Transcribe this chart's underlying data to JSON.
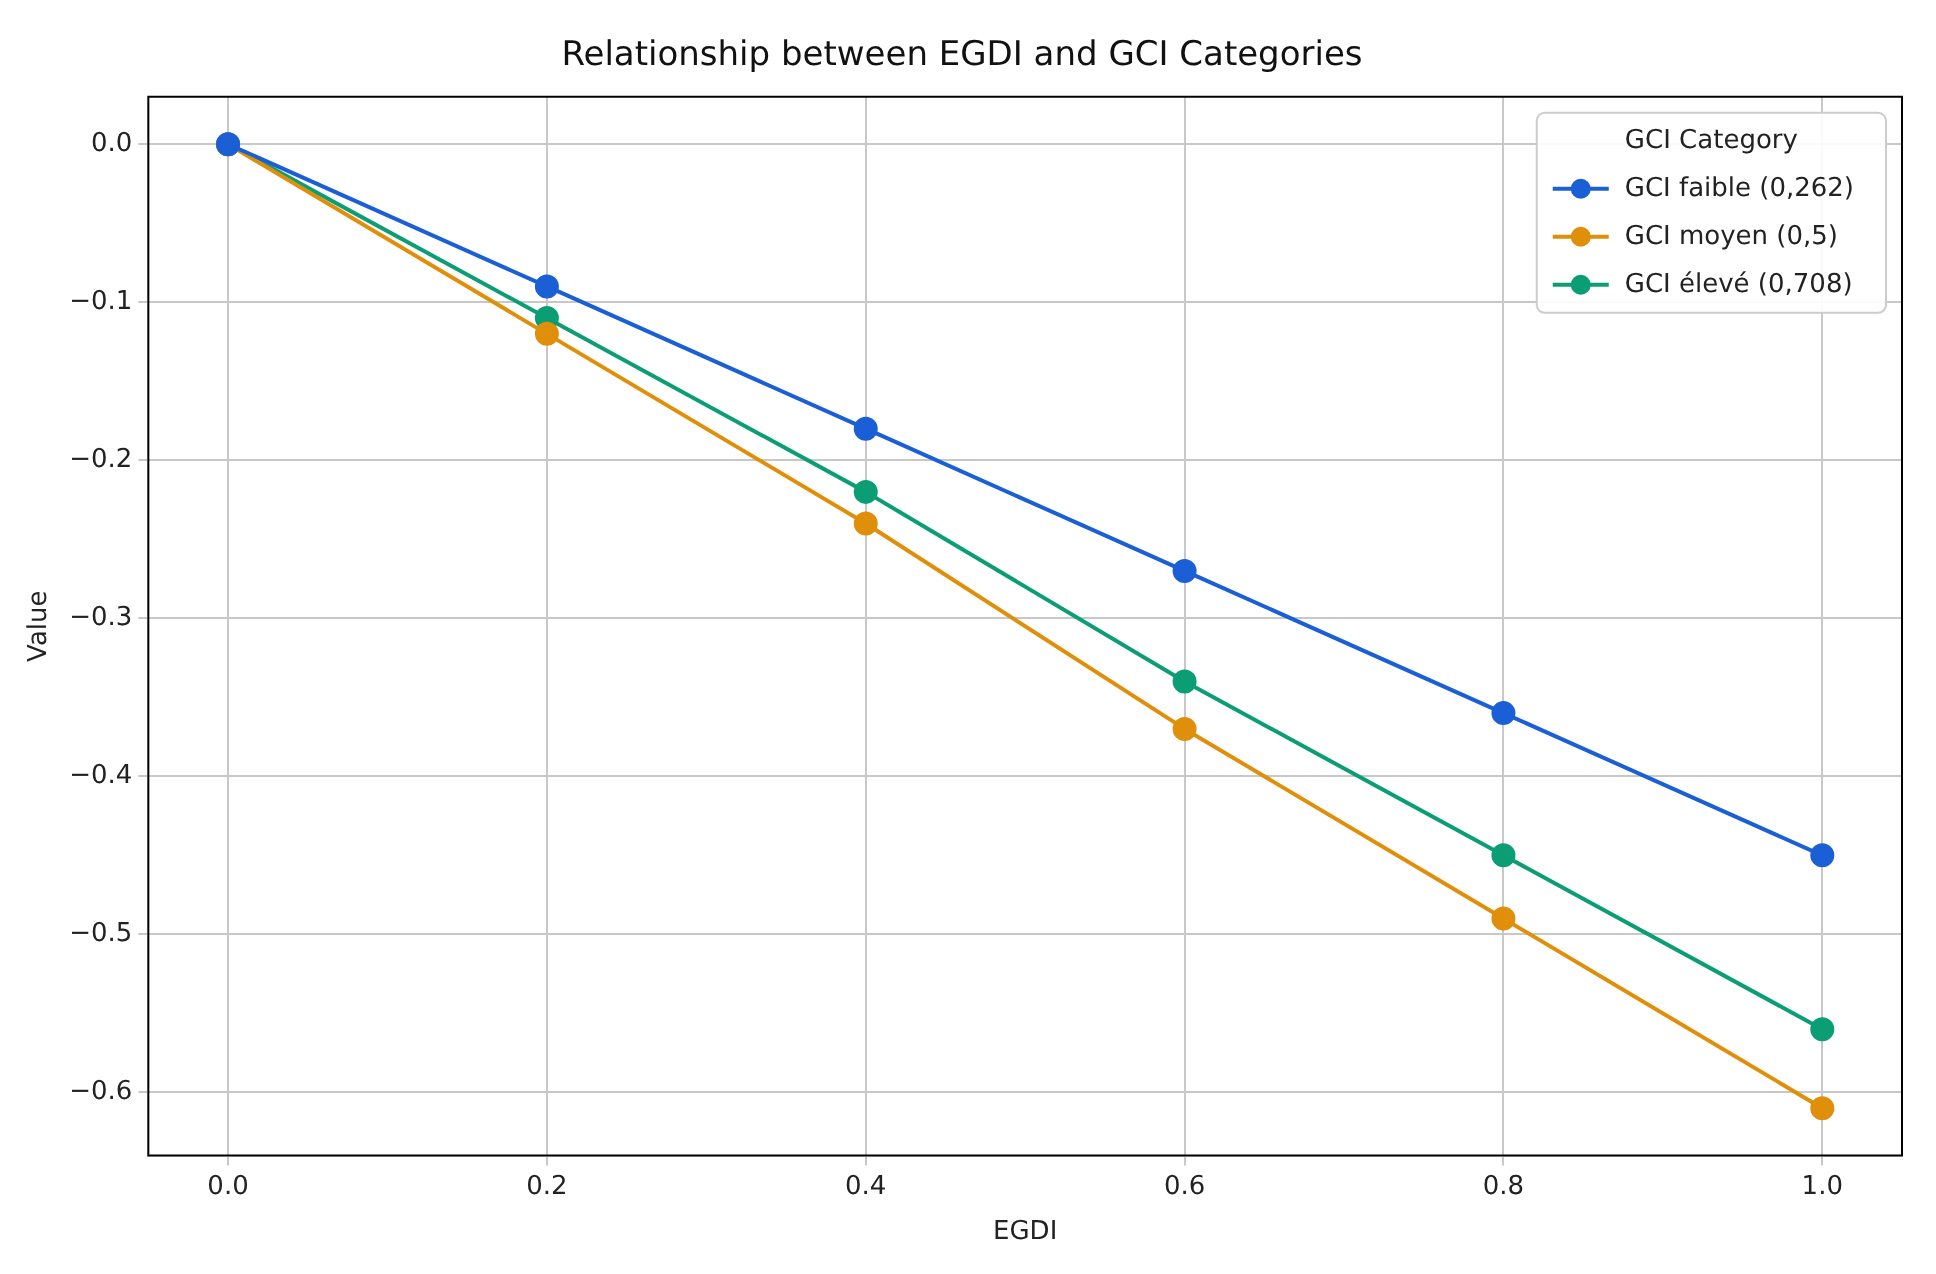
{
  "chart_data": {
    "type": "line",
    "title": "Relationship between EGDI and GCI Categories",
    "xlabel": "EGDI",
    "ylabel": "Value",
    "legend_title": "GCI Category",
    "x": [
      0,
      0.2,
      0.4,
      0.6,
      0.8,
      1.0
    ],
    "series": [
      {
        "name": "GCI faible (0,262)",
        "color": "#1a5fd6",
        "values": [
          0,
          -0.09,
          -0.18,
          -0.27,
          -0.36,
          -0.45
        ]
      },
      {
        "name": "GCI moyen (0,5)",
        "color": "#e08f0b",
        "values": [
          0,
          -0.12,
          -0.24,
          -0.37,
          -0.49,
          -0.61
        ]
      },
      {
        "name": "GCI élevé (0,708)",
        "color": "#0b9e74",
        "values": [
          0,
          -0.11,
          -0.22,
          -0.34,
          -0.45,
          -0.56
        ]
      }
    ],
    "xlim": [
      -0.05,
      1.05
    ],
    "xticks": [
      {
        "value": 0,
        "label": "0.0"
      },
      0.2,
      0.4,
      0.6,
      0.8,
      {
        "value": 1,
        "label": "1.0"
      }
    ],
    "ylim": [
      -0.64,
      0.03
    ],
    "yticks": [
      {
        "value": -0.6,
        "label": "−0.6"
      },
      {
        "value": -0.5,
        "label": "−0.5"
      },
      {
        "value": -0.4,
        "label": "−0.4"
      },
      {
        "value": -0.3,
        "label": "−0.3"
      },
      {
        "value": -0.2,
        "label": "−0.2"
      },
      {
        "value": -0.1,
        "label": "−0.1"
      },
      {
        "value": 0,
        "label": "0.0"
      }
    ],
    "grid": true,
    "legend": "top right",
    "marker": "circle",
    "line_style": "solid"
  }
}
